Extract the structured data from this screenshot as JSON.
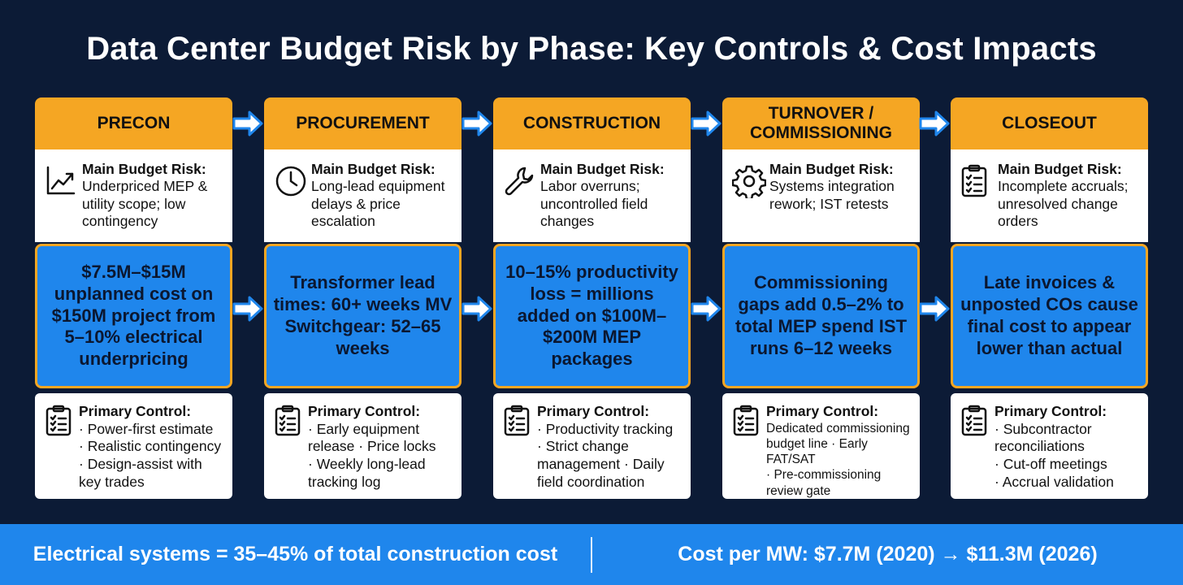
{
  "title": "Data Center Budget Risk by Phase: Key Controls & Cost Impacts",
  "phases": [
    {
      "name": "PRECON",
      "risk_label": "Main Budget Risk:",
      "risk_text": "Underpriced MEP & utility scope; low contingency",
      "risk_icon": "trend-chart-icon",
      "impact": "$7.5M–$15M unplanned cost on $150M project from 5–10% electrical underpricing",
      "control_label": "Primary Control:",
      "control_items": [
        "· Power-first estimate",
        "· Realistic contingency",
        "· Design-assist with key trades"
      ],
      "control_icon": "checklist-icon"
    },
    {
      "name": "PROCUREMENT",
      "risk_label": "Main Budget Risk:",
      "risk_text": "Long-lead equipment delays & price escalation",
      "risk_icon": "clock-icon",
      "impact": "Transformer lead times: 60+ weeks MV Switchgear: 52–65 weeks",
      "control_label": "Primary Control:",
      "control_items": [
        "· Early equipment release · Price locks",
        "· Weekly long-lead tracking log"
      ],
      "control_icon": "checklist-icon"
    },
    {
      "name": "CONSTRUCTION",
      "risk_label": "Main Budget Risk:",
      "risk_text": "Labor overruns; uncontrolled field changes",
      "risk_icon": "wrench-icon",
      "impact": "10–15% productivity loss = millions added on $100M–$200M MEP packages",
      "control_label": "Primary Control:",
      "control_items": [
        "· Productivity tracking",
        "· Strict change management · Daily field coordination"
      ],
      "control_icon": "checklist-icon"
    },
    {
      "name": "TURNOVER / COMMISSIONING",
      "risk_label": "Main Budget Risk:",
      "risk_text": "Systems integration rework; IST retests",
      "risk_icon": "gear-icon",
      "impact": "Commissioning gaps add 0.5–2% to total MEP spend IST runs 6–12 weeks",
      "control_label": "Primary Control:",
      "control_items": [
        "Dedicated commissioning budget line · Early FAT/SAT",
        "· Pre-commissioning review gate"
      ],
      "control_icon": "checklist-icon"
    },
    {
      "name": "CLOSEOUT",
      "risk_label": "Main Budget Risk:",
      "risk_text": "Incomplete accruals; unresolved change orders",
      "risk_icon": "clipboard-icon",
      "impact": "Late invoices & unposted COs cause final cost to appear lower than actual",
      "control_label": "Primary Control:",
      "control_items": [
        "· Subcontractor reconciliations",
        "· Cut-off meetings",
        "· Accrual validation"
      ],
      "control_icon": "checklist-icon"
    }
  ],
  "footer": {
    "left": "Electrical systems = 35–45% of total construction cost",
    "right": "Cost per MW: $7.7M (2020) → $11.3M (2026)"
  },
  "colors": {
    "background": "#0c1b36",
    "header": "#f5a623",
    "impact": "#1f86ec",
    "footer": "#1f86ec"
  }
}
